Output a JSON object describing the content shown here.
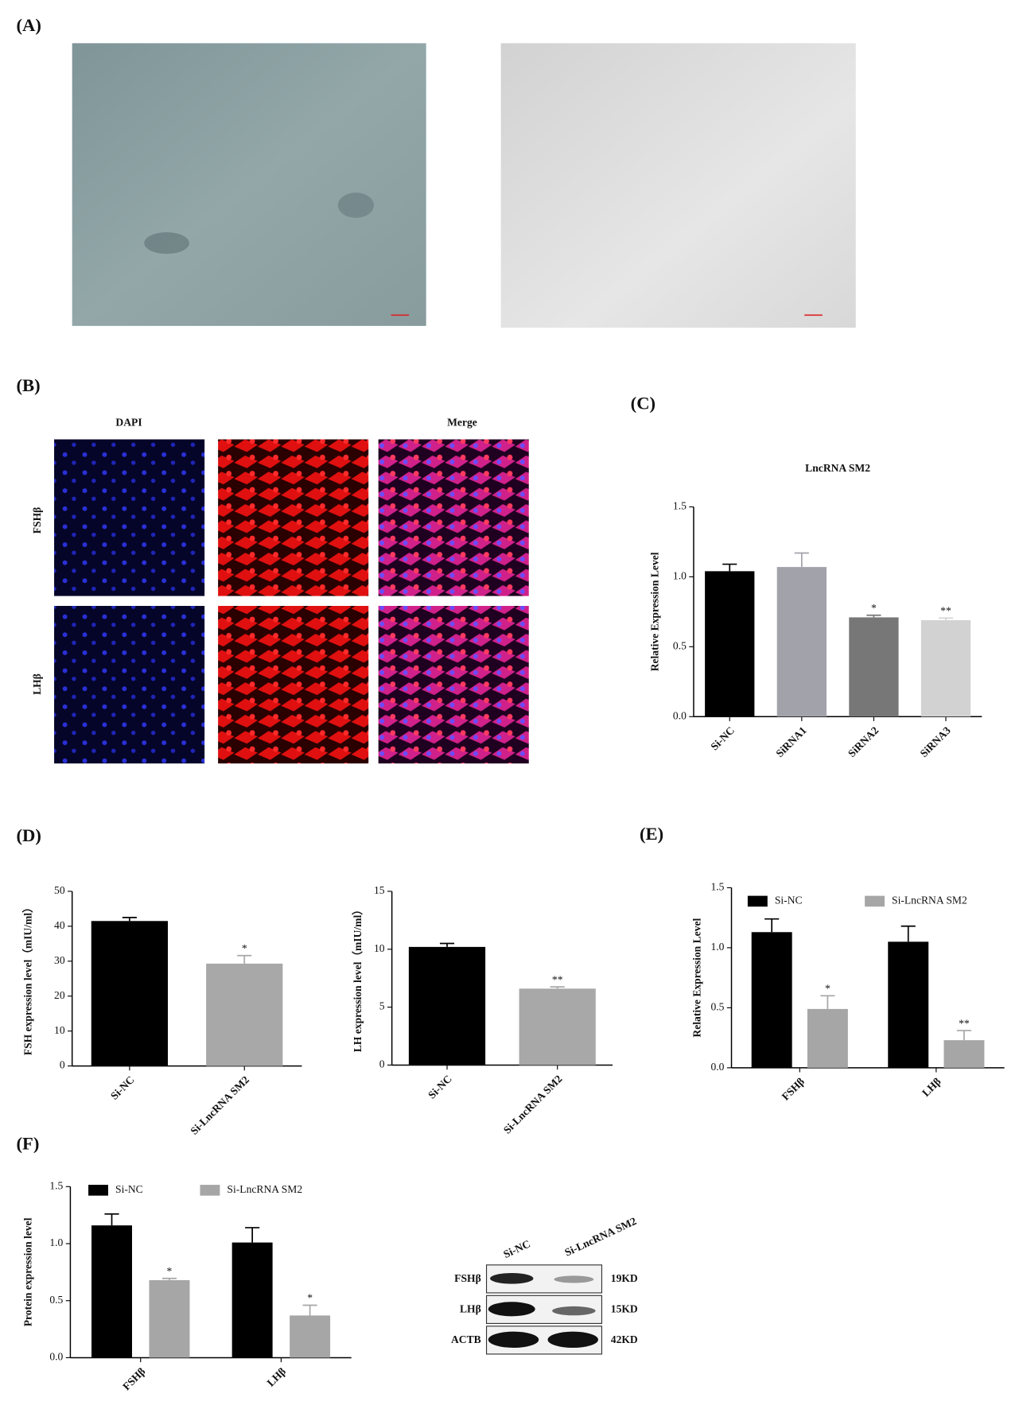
{
  "panel_labels": [
    "(A)",
    "(B)",
    "(C)",
    "(D)",
    "(E)",
    "(F)"
  ],
  "panel_b": {
    "columns": [
      "DAPI",
      "Merge"
    ],
    "rows": [
      "FSHβ",
      "LHβ"
    ]
  },
  "blot": {
    "lanes": [
      "Si-NC",
      "Si-LncRNA SM2"
    ],
    "rows": [
      {
        "protein": "FSHβ",
        "size": "19KD"
      },
      {
        "protein": "LHβ",
        "size": "15KD"
      },
      {
        "protein": "ACTB",
        "size": "42KD"
      }
    ]
  },
  "chart_data": [
    {
      "type": "bar",
      "title": "LncRNA SM2",
      "y_label": "Relative Expression Level",
      "categories": [
        "Si-NC",
        "SiRNA1",
        "SiRNA2",
        "SiRNA3"
      ],
      "values": [
        1.04,
        1.07,
        0.71,
        0.69
      ],
      "errors": [
        0.05,
        0.1,
        0.015,
        0.015
      ],
      "colors": [
        "#000000",
        "#a2a2aa",
        "#777777",
        "#d2d2d2"
      ],
      "sig": [
        null,
        null,
        "*",
        "**"
      ],
      "ylim": [
        0,
        1.5
      ],
      "yticks": [
        {
          "value": 0,
          "label": "0.0"
        },
        0.5,
        {
          "value": 1,
          "label": "1.0"
        },
        1.5
      ]
    },
    {
      "type": "bar",
      "y_label": "FSH expression level（mIU/ml）",
      "categories": [
        "Si-NC",
        "Si-LncRNA SM2"
      ],
      "values": [
        41.5,
        29.3
      ],
      "errors": [
        1,
        2.3
      ],
      "colors": [
        "#000000",
        "#a8a8a8"
      ],
      "sig": [
        null,
        "*"
      ],
      "ylim": [
        0,
        50
      ],
      "yticks": [
        0,
        10,
        20,
        30,
        40,
        50
      ]
    },
    {
      "type": "bar",
      "y_label": "LH expression level（mIU/ml）",
      "categories": [
        "Si-NC",
        "Si-LncRNA SM2"
      ],
      "values": [
        10.2,
        6.6
      ],
      "errors": [
        0.3,
        0.15
      ],
      "colors": [
        "#000000",
        "#a8a8a8"
      ],
      "sig": [
        null,
        "**"
      ],
      "ylim": [
        0,
        15
      ],
      "yticks": [
        0,
        5,
        10,
        15
      ]
    },
    {
      "type": "grouped_bar",
      "y_label": "Relative Expression Level",
      "categories": [
        "FSHβ",
        "LHβ"
      ],
      "series": [
        {
          "name": "Si-NC",
          "color": "#000000",
          "values": [
            1.13,
            1.05
          ],
          "errors": [
            0.11,
            0.13
          ],
          "sig": [
            null,
            null
          ]
        },
        {
          "name": "Si-LncRNA SM2",
          "color": "#a6a6a6",
          "values": [
            0.49,
            0.23
          ],
          "errors": [
            0.11,
            0.08
          ],
          "sig": [
            "*",
            "**"
          ]
        }
      ],
      "ylim": [
        0,
        1.5
      ],
      "yticks": [
        {
          "value": 0,
          "label": "0.0"
        },
        0.5,
        {
          "value": 1,
          "label": "1.0"
        },
        1.5
      ]
    },
    {
      "type": "grouped_bar",
      "y_label": "Protein expression level",
      "categories": [
        "FSHβ",
        "LHβ"
      ],
      "series": [
        {
          "name": "Si-NC",
          "color": "#000000",
          "values": [
            1.16,
            1.01
          ],
          "errors": [
            0.1,
            0.13
          ],
          "sig": [
            null,
            null
          ]
        },
        {
          "name": "Si-LncRNA SM2",
          "color": "#a6a6a6",
          "values": [
            0.68,
            0.37
          ],
          "errors": [
            0.015,
            0.09
          ],
          "sig": [
            "*",
            "*"
          ]
        }
      ],
      "ylim": [
        0,
        1.5
      ],
      "yticks": [
        {
          "value": 0,
          "label": "0.0"
        },
        0.5,
        {
          "value": 1,
          "label": "1.0"
        },
        1.5
      ]
    }
  ]
}
